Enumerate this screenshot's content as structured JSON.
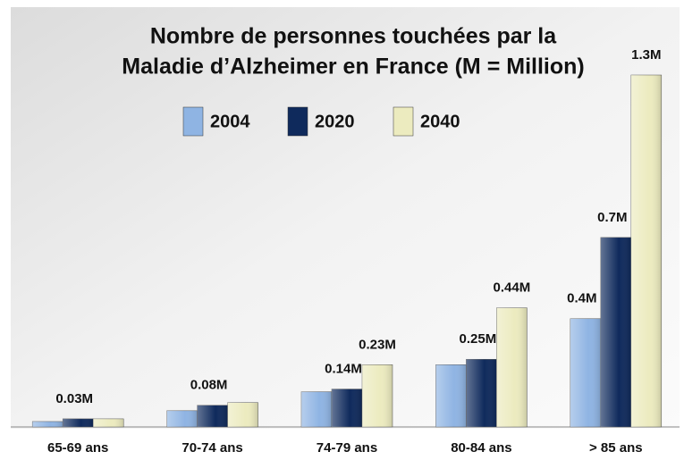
{
  "chart_data": {
    "type": "bar",
    "title": [
      "Nombre de personnes touchées par la",
      "Maladie d’Alzheimer en France (M = Million)"
    ],
    "categories": [
      "65-69 ans",
      "70-74 ans",
      "74-79 ans",
      "80-84 ans",
      "> 85 ans"
    ],
    "series": [
      {
        "name": "2004",
        "color": "#8fb4e3",
        "values": [
          0.02,
          0.06,
          0.13,
          0.23,
          0.4
        ],
        "value_labels": [
          null,
          null,
          null,
          null,
          "0.4M"
        ]
      },
      {
        "name": "2020",
        "color": "#0f2a5c",
        "values": [
          0.03,
          0.08,
          0.14,
          0.25,
          0.7
        ],
        "value_labels": [
          "0.03M",
          "0.08M",
          "0.14M",
          "0.25M",
          "0.7M"
        ]
      },
      {
        "name": "2040",
        "color": "#ecebbf",
        "values": [
          0.03,
          0.09,
          0.23,
          0.44,
          1.3
        ],
        "value_labels": [
          null,
          null,
          "0.23M",
          "0.44M",
          "1.3M"
        ]
      }
    ],
    "legend": "top"
  }
}
